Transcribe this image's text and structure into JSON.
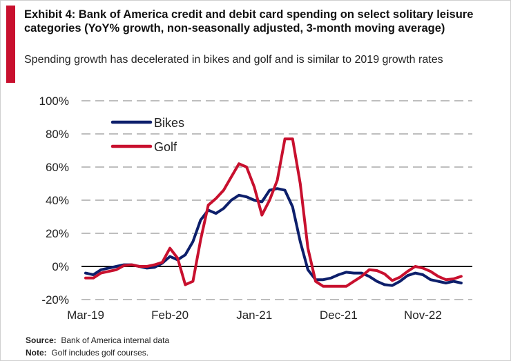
{
  "title": "Exhibit 4: Bank of America credit and debit card spending on select solitary leisure categories (YoY% growth, non-seasonally adjusted, 3-month moving average)",
  "subtitle": "Spending growth has decelerated in bikes and golf and is similar to 2019 growth rates",
  "footer": {
    "source_label": "Source:",
    "source_text": "Bank of America internal data",
    "note_label": "Note:",
    "note_text": "Golf includes golf courses."
  },
  "colors": {
    "accent": "#c8102e",
    "bikes": "#0d1f6b",
    "golf": "#c8102e"
  },
  "chart_data": {
    "type": "line",
    "title": "",
    "xlabel": "",
    "ylabel": "",
    "ylim": [
      -20,
      100
    ],
    "yticks": [
      -20,
      0,
      20,
      40,
      60,
      80,
      100
    ],
    "ytick_labels": [
      "-20%",
      "0%",
      "20%",
      "40%",
      "60%",
      "80%",
      "100%"
    ],
    "x_start": "Mar-19",
    "x_end": "Apr-23",
    "xtick_labels": [
      "Mar-19",
      "Feb-20",
      "Jan-21",
      "Dec-21",
      "Nov-22"
    ],
    "grid": "horizontal dashed",
    "legend": "top-left",
    "series": [
      {
        "name": "Bikes",
        "color": "#0d1f6b",
        "values": [
          -4,
          -5,
          -2,
          -1,
          0,
          1,
          1,
          0,
          -1,
          -0.5,
          2,
          6,
          4,
          7,
          15,
          28,
          34,
          32,
          35,
          40,
          43,
          42,
          40,
          39,
          46,
          47,
          46,
          36,
          15,
          -2,
          -8,
          -8,
          -7,
          -5,
          -3.5,
          -4,
          -4,
          -6,
          -9,
          -11,
          -11.5,
          -9,
          -5.5,
          -4,
          -5,
          -8,
          -9,
          -10,
          -9,
          -10
        ]
      },
      {
        "name": "Golf",
        "color": "#c8102e",
        "values": [
          -7,
          -7,
          -4,
          -3,
          -2,
          0.5,
          1,
          0,
          0,
          1,
          2.5,
          11,
          5,
          -11,
          -9,
          16,
          37,
          41,
          46,
          54,
          62,
          60,
          48,
          31,
          40,
          52,
          77,
          77,
          50,
          11,
          -9,
          -12,
          -12,
          -12,
          -12,
          -9,
          -6,
          -2,
          -2.5,
          -4.5,
          -8.5,
          -6.5,
          -3,
          0,
          -1,
          -3,
          -6,
          -8,
          -7.5,
          -6
        ]
      }
    ]
  }
}
